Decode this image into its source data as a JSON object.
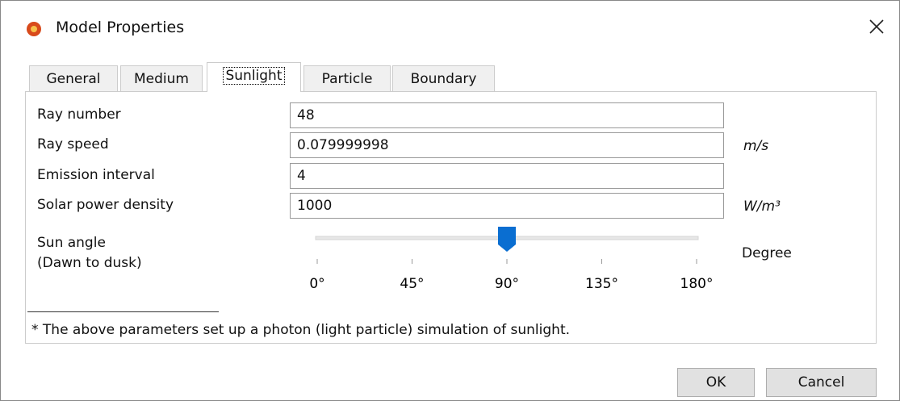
{
  "window": {
    "title": "Model Properties"
  },
  "tabs": [
    "General",
    "Medium",
    "Sunlight",
    "Particle",
    "Boundary"
  ],
  "selected_tab": 2,
  "fields": [
    {
      "label": "Ray number",
      "value": "48",
      "unit": null
    },
    {
      "label": "Ray speed",
      "value": "0.079999998",
      "unit": "m/s"
    },
    {
      "label": "Emission interval",
      "value": "4",
      "unit": null
    },
    {
      "label": "Solar power density",
      "value": "1000",
      "unit": "W/m³"
    }
  ],
  "slider": {
    "label": [
      "Sun angle",
      "(Dawn to dusk)"
    ],
    "value": 90,
    "range": [
      0,
      180
    ],
    "ticks": [
      {
        "value": 0,
        "label": "0°"
      },
      {
        "value": 45,
        "label": "45°"
      },
      {
        "value": 90,
        "label": "90°"
      },
      {
        "value": 135,
        "label": "135°"
      },
      {
        "value": 180,
        "label": "180°"
      }
    ],
    "unit": "Degree"
  },
  "footnote": "* The above parameters set up a photon (light particle) simulation of sunlight.",
  "buttons": [
    "OK",
    "Cancel"
  ]
}
